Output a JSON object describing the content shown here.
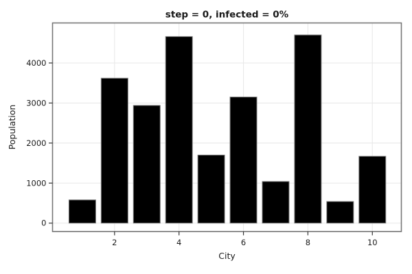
{
  "chart_data": {
    "type": "bar",
    "title": "step = 0, infected = 0%",
    "xlabel": "City",
    "ylabel": "Population",
    "categories": [
      1,
      2,
      3,
      4,
      5,
      6,
      7,
      8,
      9,
      10
    ],
    "values": [
      580,
      3620,
      2940,
      4660,
      1700,
      3150,
      1040,
      4700,
      540,
      1670
    ],
    "x_ticks": [
      2,
      4,
      6,
      8,
      10
    ],
    "x_tick_labels": [
      "2",
      "4",
      "6",
      "8",
      "10"
    ],
    "y_ticks": [
      0,
      1000,
      2000,
      3000,
      4000
    ],
    "y_tick_labels": [
      "0",
      "1000",
      "2000",
      "3000",
      "4000"
    ],
    "xlim": [
      0.075,
      10.9
    ],
    "ylim": [
      -210,
      5000
    ],
    "grid": true,
    "legend_position": "none",
    "bar_color": "#000000",
    "bar_edge_color": "#7f7f7f",
    "grid_color": "#e9e9e9",
    "frame_color": "#767676",
    "tick_color": "#333333",
    "text_color": "#1a1a1a",
    "background_color": "#ffffff"
  }
}
